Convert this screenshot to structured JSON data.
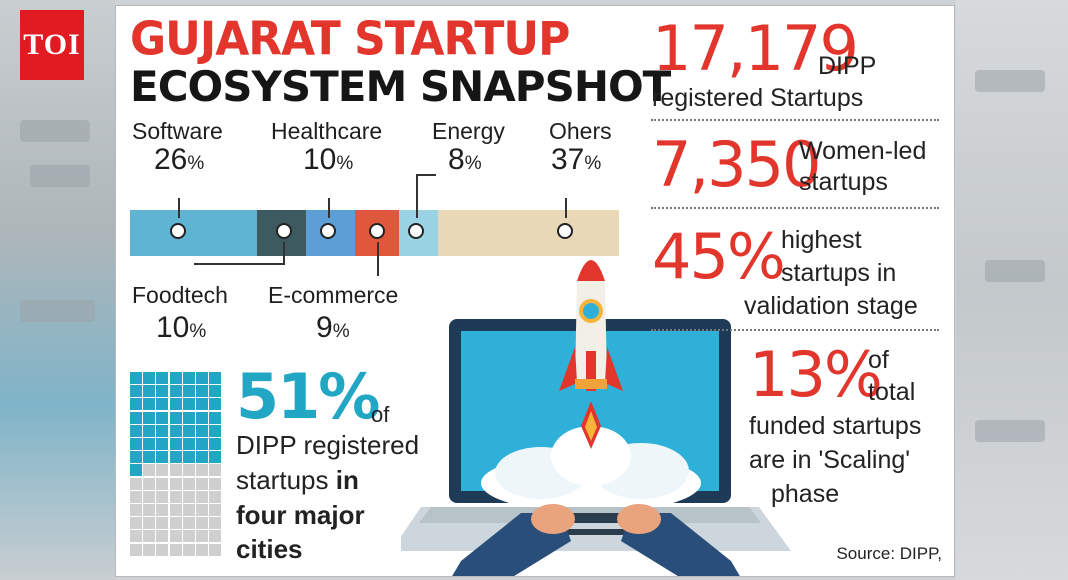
{
  "logo": {
    "text": "TOI"
  },
  "title": {
    "line1": "GUJARAT STARTUP",
    "line2": "ECOSYSTEM SNAPSHOT"
  },
  "chart_data": {
    "type": "bar",
    "orientation": "stacked-horizontal",
    "categories": [
      "Software",
      "Foodtech",
      "Healthcare",
      "E-commerce",
      "Energy",
      "Ohers"
    ],
    "values": [
      26,
      10,
      10,
      9,
      8,
      37
    ],
    "unit": "%",
    "colors": [
      "#5fb3d3",
      "#3c5a60",
      "#5b9fd6",
      "#e0583b",
      "#9ad4e4",
      "#e8d8b8"
    ],
    "labels_top": [
      {
        "category": "Software",
        "value_text": "26",
        "unit": "%"
      },
      {
        "category": "Healthcare",
        "value_text": "10",
        "unit": "%"
      },
      {
        "category": "Energy",
        "value_text": "8",
        "unit": "%"
      },
      {
        "category": "Ohers",
        "value_text": "37",
        "unit": "%"
      }
    ],
    "labels_bottom": [
      {
        "category": "Foodtech",
        "value_text": "10",
        "unit": "%"
      },
      {
        "category": "E-commerce",
        "value_text": "9",
        "unit": "%"
      }
    ]
  },
  "waffle": {
    "value": 51,
    "big_text": "51%",
    "of_text": "of",
    "line1": "DIPP registered",
    "line2a": "startups ",
    "line2b": "in",
    "line3": "four major",
    "line4": "cities",
    "filled_color": "#21a6c4",
    "empty_color": "#cfcfcf"
  },
  "stats": [
    {
      "big": "17,179",
      "small1": "DIPP",
      "line2": "registered Startups"
    },
    {
      "big": "7,350",
      "small1": "Women-led",
      "small2": "startups"
    },
    {
      "big": "45%",
      "small1": "highest",
      "small2": "startups in",
      "line3": "validation stage"
    },
    {
      "big": "13%",
      "small1": "of",
      "small2": "total",
      "line3": "funded startups",
      "line4": "are in 'Scaling'",
      "line5": "phase"
    }
  ],
  "source": "Source: DIPP,"
}
